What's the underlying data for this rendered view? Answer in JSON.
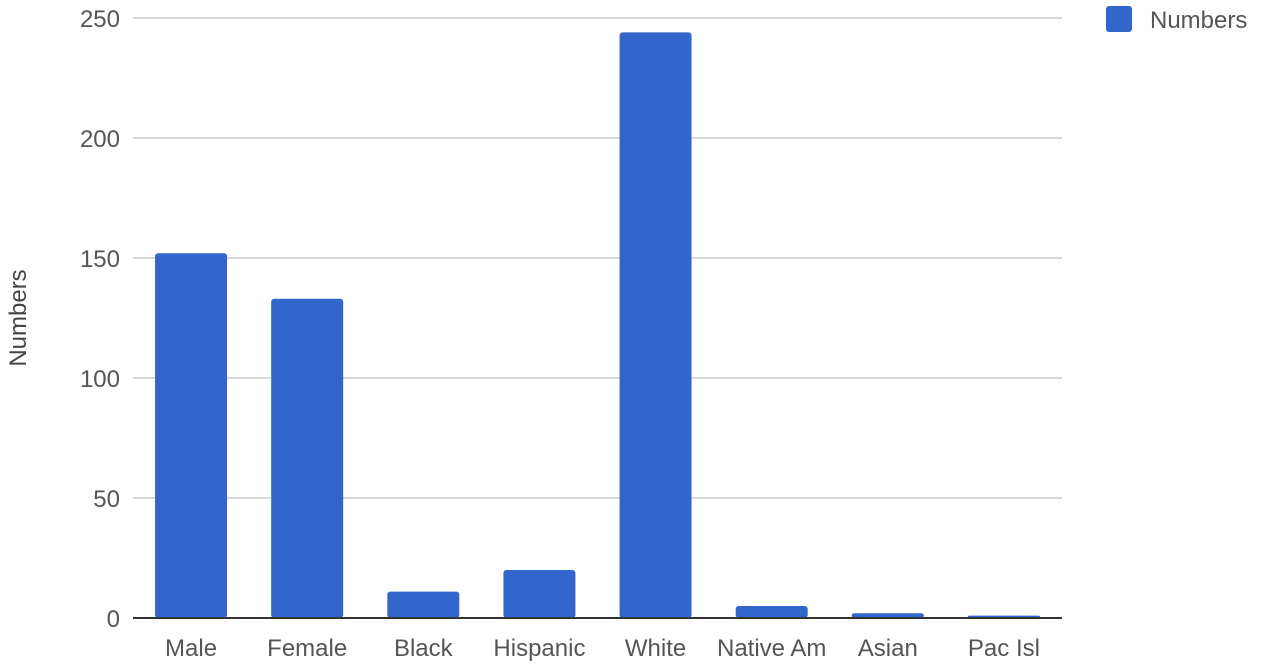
{
  "chart_data": {
    "type": "bar",
    "title": "",
    "xlabel": "",
    "ylabel": "Numbers",
    "categories": [
      "Male",
      "Female",
      "Black",
      "Hispanic",
      "White",
      "Native Am",
      "Asian",
      "Pac Isl"
    ],
    "series": [
      {
        "name": "Numbers",
        "values": [
          152,
          133,
          11,
          20,
          244,
          5,
          2,
          1
        ],
        "color": "#3366cc"
      }
    ],
    "ylim": [
      0,
      250
    ],
    "yticks": [
      0,
      50,
      100,
      150,
      200,
      250
    ],
    "grid": true,
    "legend": "top-right"
  }
}
